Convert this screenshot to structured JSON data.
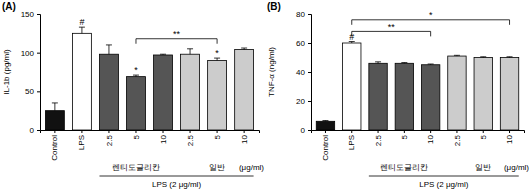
{
  "chart_data": [
    {
      "type": "bar",
      "title": "(A)",
      "y_label": "IL-1b (pg/ml)",
      "categories": [
        "Control",
        "LPS",
        "2.5",
        "5",
        "10",
        "2.5",
        "5",
        "10"
      ],
      "values": [
        25,
        125,
        98,
        69,
        97,
        98,
        90,
        104
      ],
      "errors": [
        10,
        8,
        12,
        2,
        1,
        7,
        3,
        2
      ],
      "colors": [
        "#111111",
        "#ffffff",
        "#555555",
        "#555555",
        "#555555",
        "#cccccc",
        "#cccccc",
        "#cccccc"
      ],
      "ylim": [
        0,
        150
      ],
      "yticks": [
        0,
        50,
        100,
        150
      ],
      "annotations": [
        {
          "text": "#",
          "category": 1
        },
        {
          "text": "*",
          "category": 3
        },
        {
          "text": "*",
          "category": 6
        }
      ],
      "brackets": [
        {
          "text": "**",
          "from": 3,
          "to": 6,
          "y": 118
        }
      ],
      "groups": [
        {
          "label": "렌티도글리칸",
          "from": 2,
          "to": 4
        },
        {
          "label": "일반",
          "from": 5,
          "to": 7
        }
      ],
      "unit_label": "(μg/ml)",
      "treatment": {
        "label": "LPS (2 μg/ml)",
        "from": 2,
        "to": 7
      }
    },
    {
      "type": "bar",
      "title": "(B)",
      "y_label": "TNF-α (ng/ml)",
      "categories": [
        "Control",
        "LPS",
        "2.5",
        "5",
        "10",
        "2.5",
        "5",
        "10"
      ],
      "values": [
        6,
        60,
        46,
        46,
        45,
        51,
        50,
        50
      ],
      "errors": [
        0.5,
        1,
        1,
        0.5,
        0.5,
        0.5,
        0.5,
        0.5
      ],
      "colors": [
        "#111111",
        "#ffffff",
        "#555555",
        "#555555",
        "#555555",
        "#cccccc",
        "#cccccc",
        "#cccccc"
      ],
      "ylim": [
        0,
        80
      ],
      "yticks": [
        0,
        20,
        40,
        60,
        80
      ],
      "annotations": [
        {
          "text": "#",
          "category": 1
        }
      ],
      "brackets": [
        {
          "text": "*",
          "from": 1,
          "to": 7,
          "y": 76
        },
        {
          "text": "**",
          "from": 1,
          "to": 4,
          "y": 68
        }
      ],
      "groups": [
        {
          "label": "렌티도글리칸",
          "from": 2,
          "to": 4
        },
        {
          "label": "일반",
          "from": 5,
          "to": 7
        }
      ],
      "unit_label": "(μg/ml)",
      "treatment": {
        "label": "LPS (2 μg/ml)",
        "from": 2,
        "to": 7
      }
    }
  ]
}
